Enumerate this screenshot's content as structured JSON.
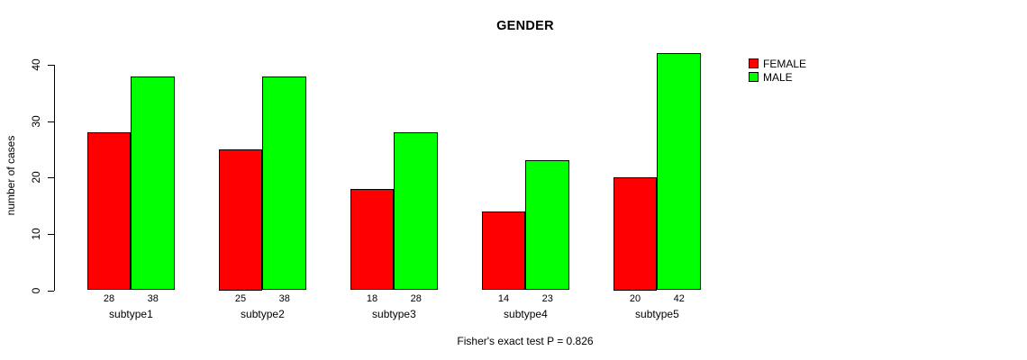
{
  "chart_data": {
    "type": "bar",
    "title": "GENDER",
    "categories": [
      "subtype1",
      "subtype2",
      "subtype3",
      "subtype4",
      "subtype5"
    ],
    "series": [
      {
        "name": "FEMALE",
        "color": "#FF0000",
        "values": [
          28,
          25,
          18,
          14,
          20
        ]
      },
      {
        "name": "MALE",
        "color": "#00FF00",
        "values": [
          38,
          38,
          28,
          23,
          42
        ]
      }
    ],
    "xlabel": "",
    "ylabel": "number of cases",
    "ylim": [
      0,
      40
    ],
    "yticks": [
      0,
      10,
      20,
      30,
      40
    ],
    "grid": false,
    "legend_position": "top-right",
    "bar_value_labels_shown": true,
    "bar_border_color": "#000000",
    "background_color": "#FFFFFF",
    "annotation": "Fisher's exact test P = 0.826"
  }
}
